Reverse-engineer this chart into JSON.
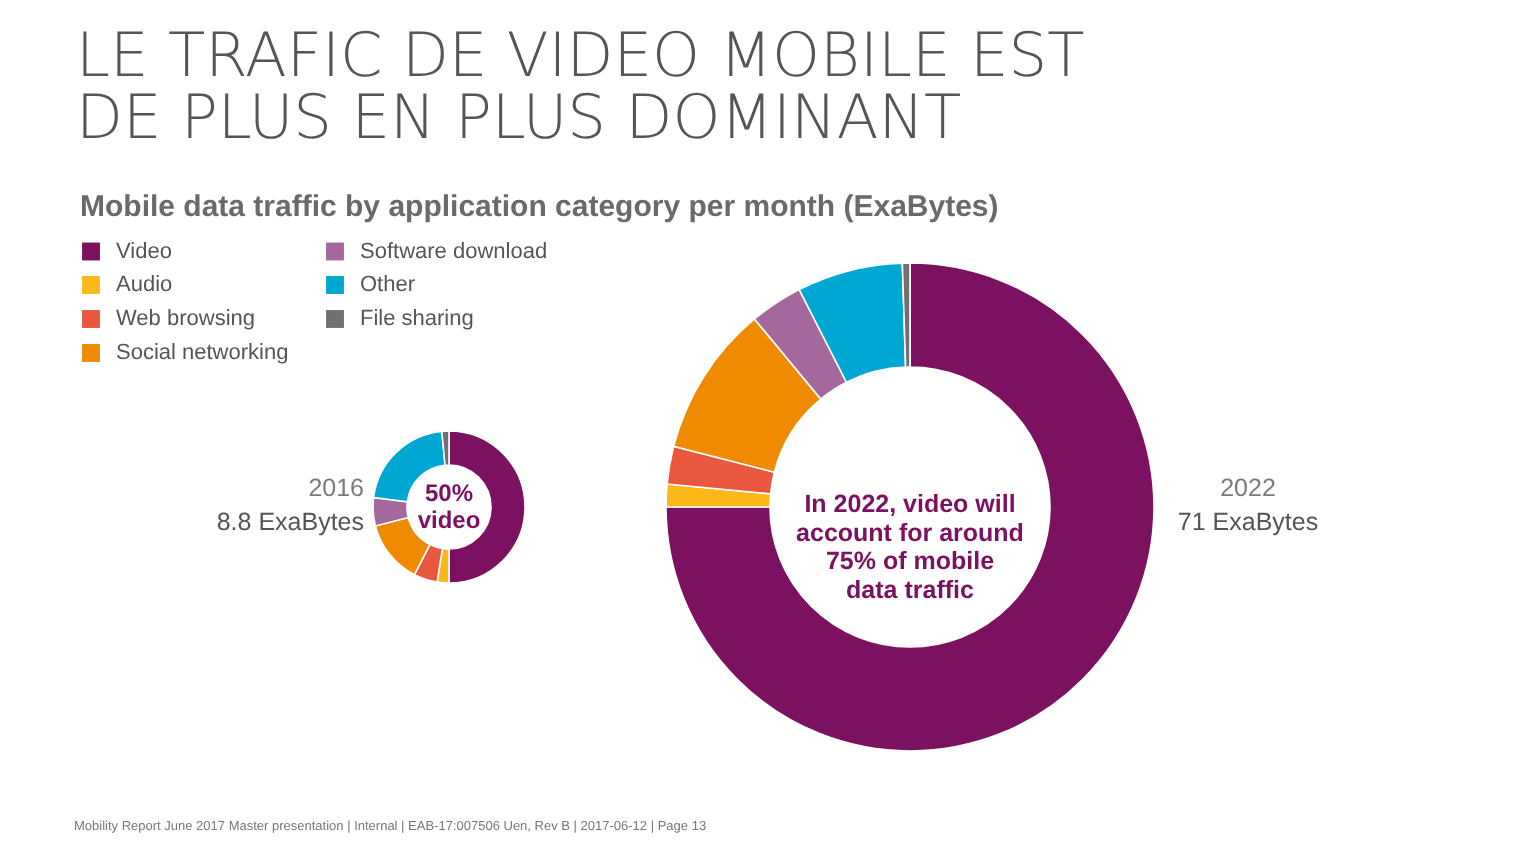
{
  "chart_data": {
    "type": "donut",
    "title": "LE TRAFIC DE VIDEO MOBILE EST\nDE PLUS EN PLUS DOMINANT",
    "subtitle": "Mobile data traffic by application category per month (ExaBytes)",
    "categories": [
      "Video",
      "Audio",
      "Web browsing",
      "Social networking",
      "Software download",
      "Other",
      "File sharing"
    ],
    "colors": [
      "#7b1160",
      "#fbb818",
      "#e9573f",
      "#f08b00",
      "#a4689c",
      "#00a7d3",
      "#707070"
    ],
    "series": [
      {
        "name": "2016",
        "values": [
          50,
          2.5,
          5,
          13.5,
          6,
          21.5,
          1.5
        ]
      },
      {
        "name": "2022",
        "values": [
          75,
          1.5,
          2.5,
          10,
          3.5,
          7,
          0.5
        ]
      }
    ],
    "legend": "top left",
    "annotations": [
      "8.8 ExaBytes",
      "50%\nvideo",
      "71 ExaBytes",
      "In 2022, video will\naccount for around\n75% of mobile\ndata traffic",
      "Mobility Report June 2017 Master presentation | Internal | EAB-17:007506 Uen, Rev B | 2017-06-12 | Page 13"
    ]
  }
}
